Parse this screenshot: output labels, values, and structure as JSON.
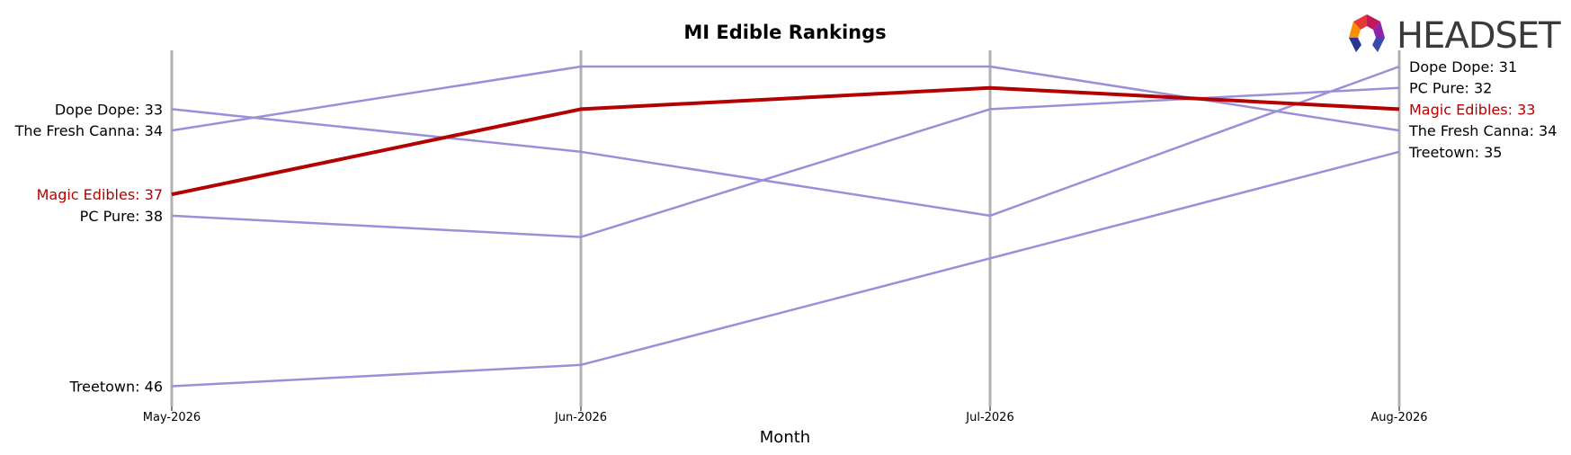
{
  "chart_data": {
    "type": "line",
    "title": "MI Edible Rankings",
    "xlabel": "Month",
    "ylabel": "",
    "categories": [
      "May-2026",
      "Jun-2026",
      "Jul-2026",
      "Aug-2026"
    ],
    "y_inverted": true,
    "ylim": [
      30.3,
      47
    ],
    "highlight_series": "Magic Edibles",
    "series": [
      {
        "name": "Magic Edibles",
        "values": [
          37,
          33,
          32,
          33
        ],
        "color": "#b30000",
        "highlight": true
      },
      {
        "name": "Dope Dope",
        "values": [
          33,
          35,
          38,
          31
        ],
        "color": "#9b8fd9"
      },
      {
        "name": "The Fresh Canna",
        "values": [
          34,
          31,
          31,
          34
        ],
        "color": "#9b8fd9"
      },
      {
        "name": "PC Pure",
        "values": [
          38,
          39,
          33,
          32
        ],
        "color": "#9b8fd9"
      },
      {
        "name": "Treetown",
        "values": [
          46,
          45,
          40,
          35
        ],
        "color": "#9b8fd9"
      }
    ],
    "left_labels": [
      {
        "text": "Dope Dope: 33",
        "value": 33,
        "color": "#000000"
      },
      {
        "text": "The Fresh Canna: 34",
        "value": 34,
        "color": "#000000"
      },
      {
        "text": "Magic Edibles: 37",
        "value": 37,
        "color": "#b30000"
      },
      {
        "text": "PC Pure: 38",
        "value": 38,
        "color": "#000000"
      },
      {
        "text": "Treetown: 46",
        "value": 46,
        "color": "#000000"
      }
    ],
    "right_labels": [
      {
        "text": "Dope Dope: 31",
        "value": 31,
        "color": "#000000"
      },
      {
        "text": "PC Pure: 32",
        "value": 32,
        "color": "#000000"
      },
      {
        "text": "Magic Edibles: 33",
        "value": 33,
        "color": "#b30000"
      },
      {
        "text": "The Fresh Canna: 34",
        "value": 34,
        "color": "#000000"
      },
      {
        "text": "Treetown: 35",
        "value": 35,
        "color": "#000000"
      }
    ],
    "grid": "vertical"
  },
  "logo": {
    "text": "HEADSET"
  }
}
